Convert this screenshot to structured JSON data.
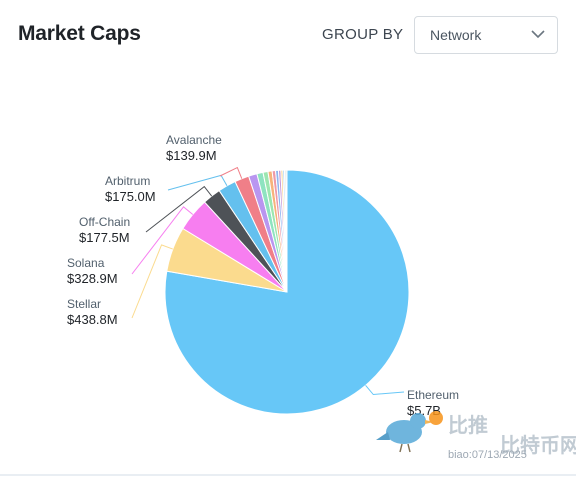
{
  "header": {
    "title": "Market Caps",
    "group_by_label": "GROUP BY",
    "group_by_value": "Network"
  },
  "chart_data": {
    "type": "pie",
    "slices": [
      {
        "name": "Ethereum",
        "value_label": "$5.7B",
        "value": 5700,
        "color": "#67c7f7"
      },
      {
        "name": "Stellar",
        "value_label": "$438.8M",
        "value": 438.8,
        "color": "#fbdb8e"
      },
      {
        "name": "Solana",
        "value_label": "$328.9M",
        "value": 328.9,
        "color": "#f77ef0"
      },
      {
        "name": "Off-Chain",
        "value_label": "$177.5M",
        "value": 177.5,
        "color": "#4e5257"
      },
      {
        "name": "Arbitrum",
        "value_label": "$175.0M",
        "value": 175.0,
        "color": "#64c0ee"
      },
      {
        "name": "Avalanche",
        "value_label": "$139.9M",
        "value": 139.9,
        "color": "#f07f88"
      },
      {
        "name": "",
        "value": 82,
        "color": "#b996f0"
      },
      {
        "name": "",
        "value": 60,
        "color": "#8ee3c0"
      },
      {
        "name": "",
        "value": 48,
        "color": "#9ce6b0"
      },
      {
        "name": "",
        "value": 40,
        "color": "#f6b37b"
      },
      {
        "name": "",
        "value": 33,
        "color": "#ee9aa8"
      },
      {
        "name": "",
        "value": 28,
        "color": "#8fb6f0"
      },
      {
        "name": "",
        "value": 23,
        "color": "#c89ad8"
      },
      {
        "name": "",
        "value": 19,
        "color": "#f7d08a"
      },
      {
        "name": "",
        "value": 16,
        "color": "#9ad0f4"
      },
      {
        "name": "",
        "value": 13,
        "color": "#c6c6c6"
      },
      {
        "name": "",
        "value": 11,
        "color": "#7fd6d0"
      }
    ]
  },
  "watermark": {
    "line1": "比推",
    "line2": "比特币网",
    "sub": "biao:07/13/2025"
  }
}
